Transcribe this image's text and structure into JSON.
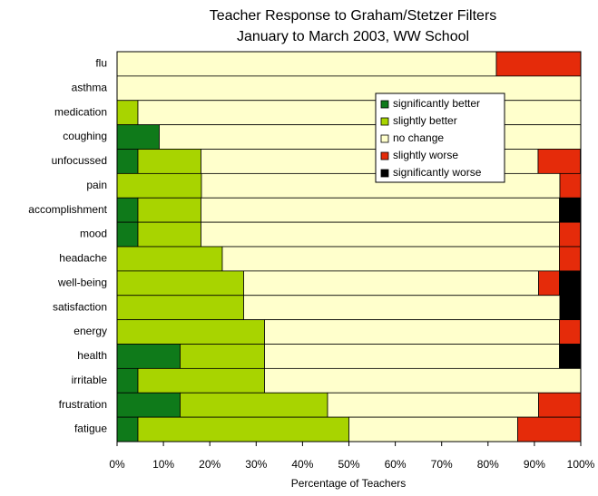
{
  "chart_data": {
    "type": "stacked-bar-horizontal",
    "title": "Teacher Response to Graham/Stetzer Filters",
    "subtitle": "January to March 2003, WW School",
    "x_label": "Percentage of Teachers",
    "categories": [
      "flu",
      "asthma",
      "medication",
      "coughing",
      "unfocussed",
      "pain",
      "accomplishment",
      "mood",
      "headache",
      "well-being",
      "satisfaction",
      "energy",
      "health",
      "irritable",
      "frustration",
      "fatigue"
    ],
    "series": [
      {
        "name": "significantly better",
        "color": "#0f7a1a",
        "values": [
          0,
          0,
          0,
          9.1,
          4.5,
          0,
          4.5,
          4.5,
          0,
          0,
          0,
          0,
          13.6,
          4.5,
          13.6,
          4.5
        ]
      },
      {
        "name": "slightly better",
        "color": "#a8d400",
        "values": [
          0,
          0,
          4.5,
          0,
          13.6,
          18.2,
          13.6,
          13.6,
          22.7,
          27.3,
          27.3,
          31.8,
          18.2,
          27.3,
          31.8,
          45.5
        ]
      },
      {
        "name": "no change",
        "color": "#ffffcc",
        "values": [
          81.8,
          100,
          95.5,
          90.9,
          72.7,
          77.3,
          77.3,
          77.3,
          72.7,
          63.6,
          68.2,
          63.6,
          63.6,
          68.2,
          45.5,
          36.4
        ]
      },
      {
        "name": "slightly worse",
        "color": "#e52b0a",
        "values": [
          18.2,
          0,
          0,
          0,
          9.1,
          4.5,
          0,
          4.5,
          4.5,
          4.5,
          0,
          4.5,
          0,
          0,
          9.1,
          13.6
        ]
      },
      {
        "name": "significantly worse",
        "color": "#000000",
        "values": [
          0,
          0,
          0,
          0,
          0,
          0,
          4.5,
          0,
          0,
          4.5,
          4.5,
          0,
          4.5,
          0,
          0,
          0
        ]
      }
    ],
    "xlim": [
      0,
      100
    ],
    "xticks": [
      {
        "value": 0,
        "label": "0%"
      },
      {
        "value": 10,
        "label": "10%"
      },
      {
        "value": 20,
        "label": "20%"
      },
      {
        "value": 30,
        "label": "30%"
      },
      {
        "value": 40,
        "label": "40%"
      },
      {
        "value": 50,
        "label": "50%"
      },
      {
        "value": 60,
        "label": "60%"
      },
      {
        "value": 70,
        "label": "70%"
      },
      {
        "value": 80,
        "label": "80%"
      },
      {
        "value": 90,
        "label": "90%"
      },
      {
        "value": 100,
        "label": "100%"
      }
    ],
    "legend": "upper-right"
  }
}
